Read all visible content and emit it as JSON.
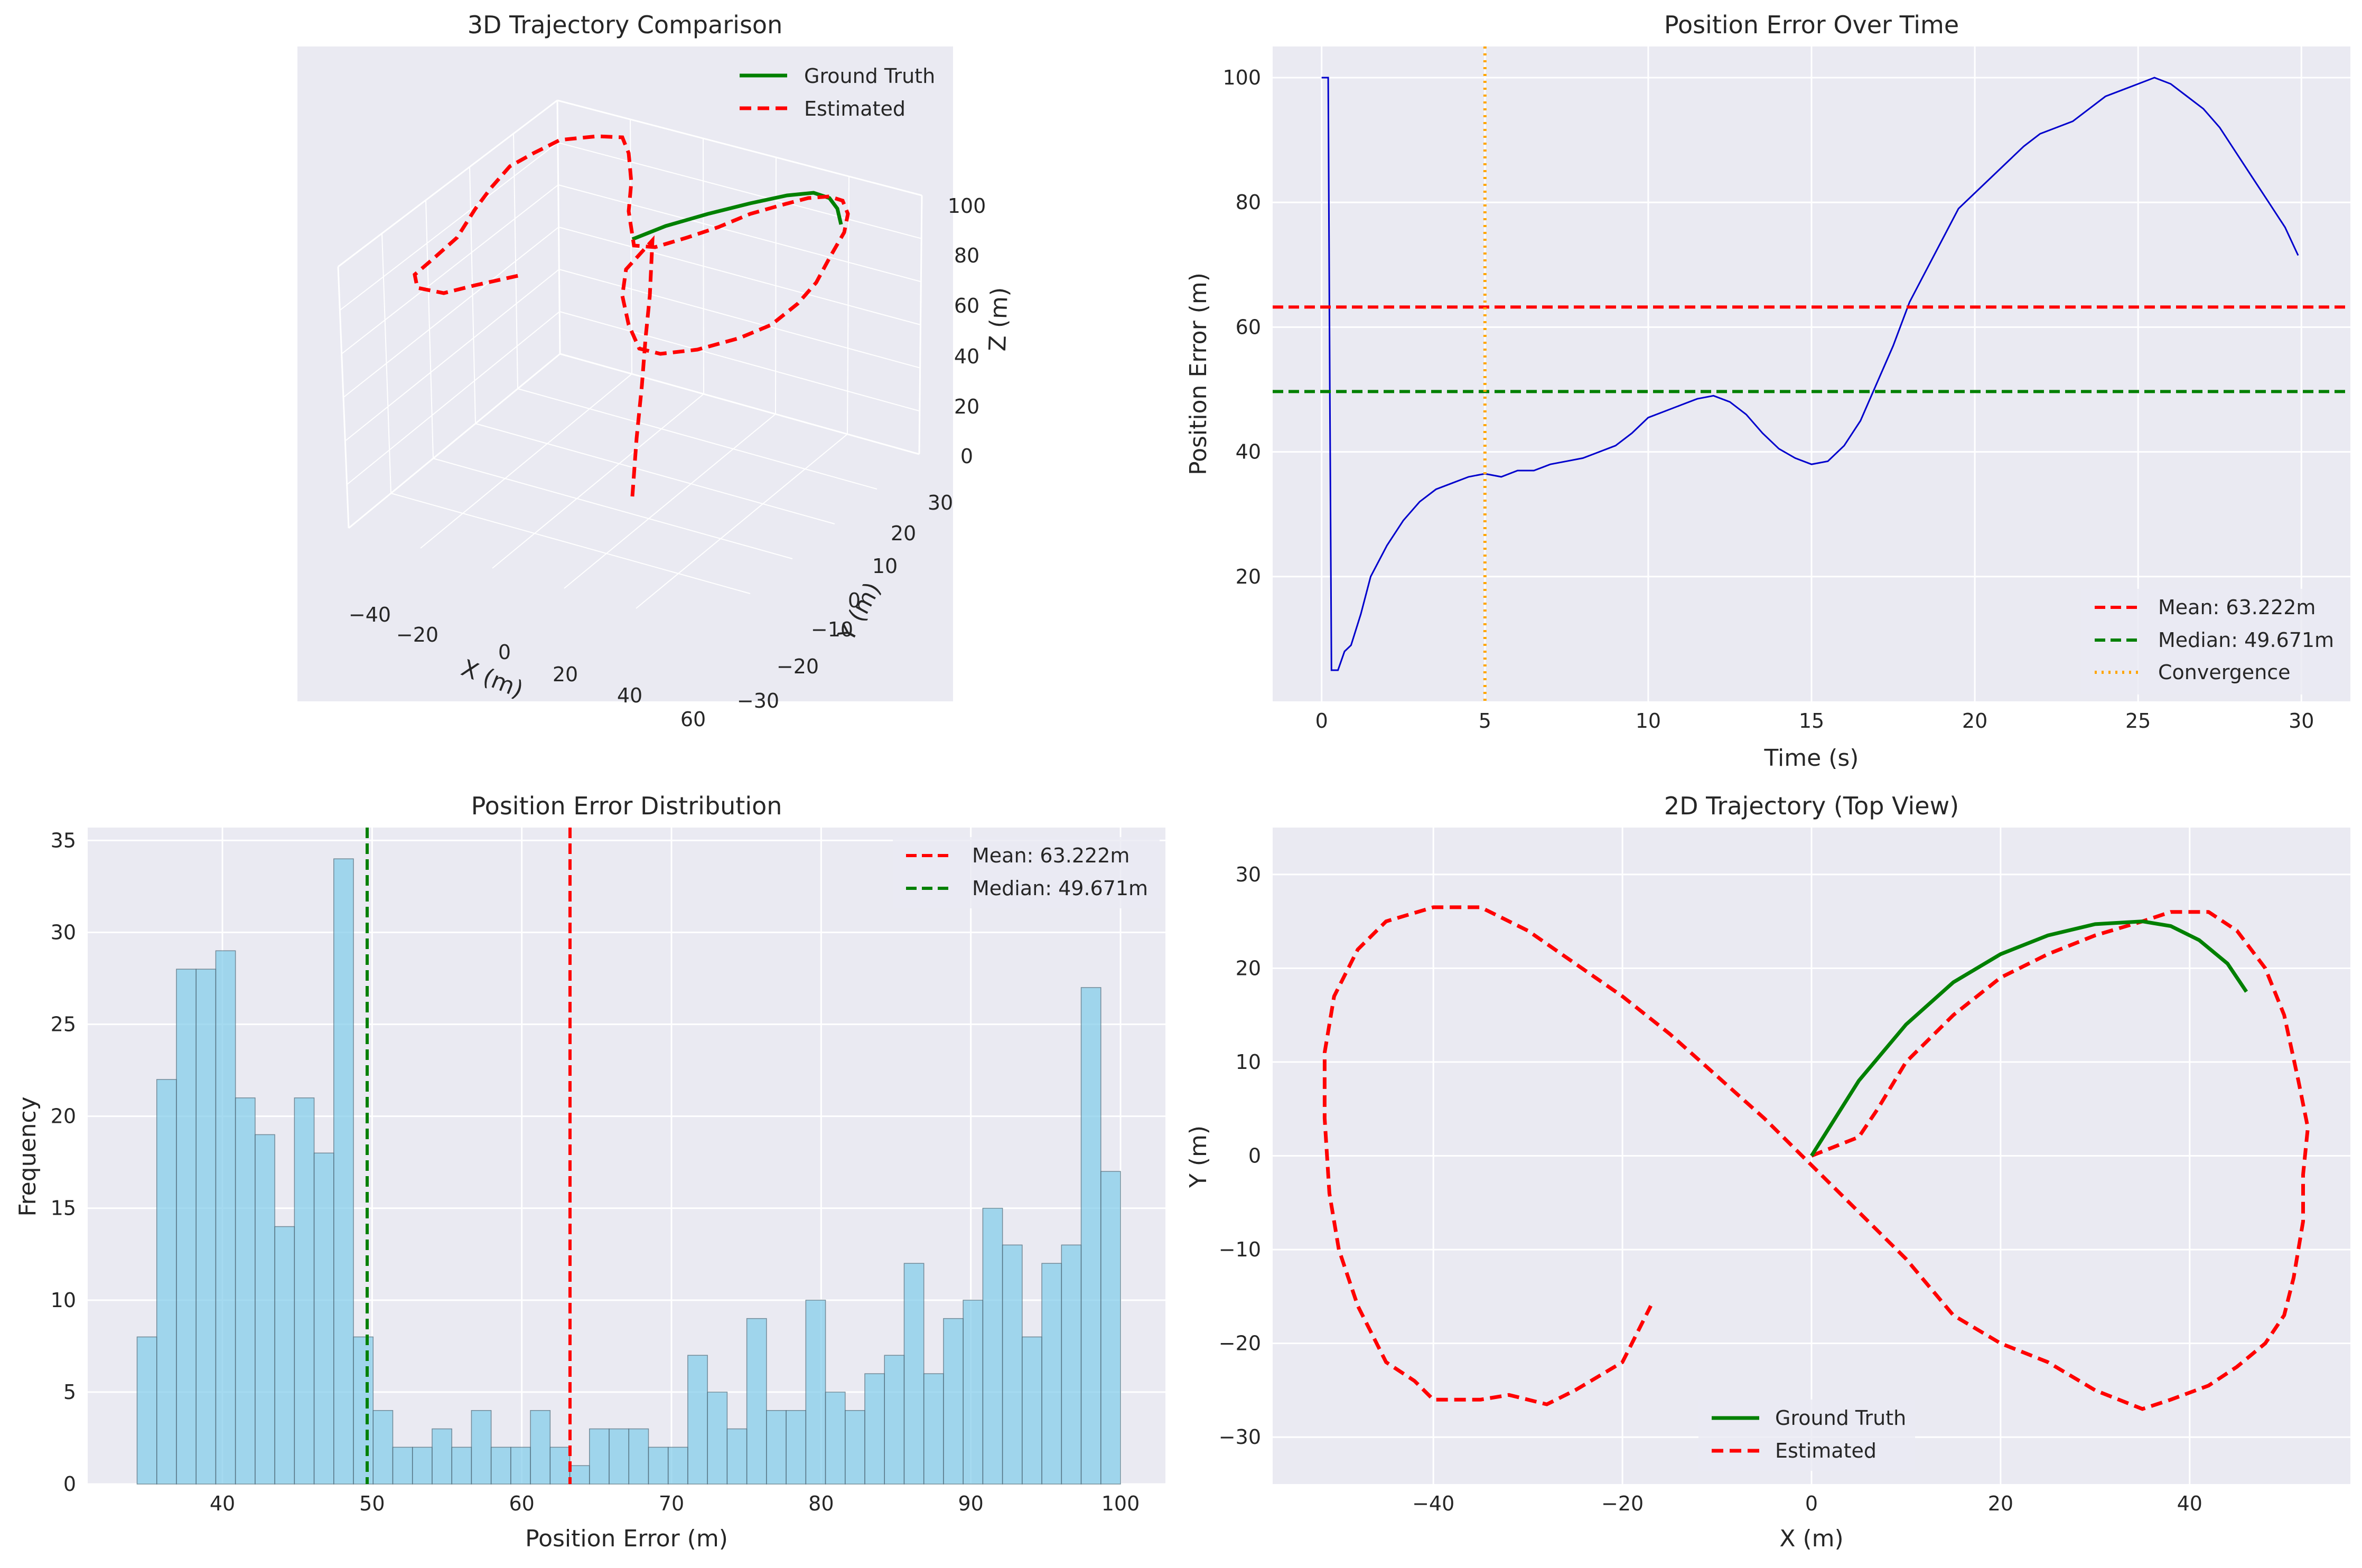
{
  "colors": {
    "ground_truth": "#008000",
    "estimated": "#ff0000",
    "error_line": "#0000cc",
    "mean": "#ff0000",
    "median": "#008000",
    "convergence": "#ffa500",
    "hist_fill": "#87ceeb",
    "hist_edge": "#4a6a7a"
  },
  "chart_data": [
    {
      "type": "line",
      "title": "3D Trajectory Comparison",
      "xlabel": "X (m)",
      "ylabel": "Y (m)",
      "zlabel": "Z (m)",
      "x_ticks": [
        "−40",
        "−20",
        "0",
        "20",
        "40",
        "60"
      ],
      "y_ticks": [
        "−30",
        "−20",
        "−10",
        "0",
        "10",
        "20",
        "30"
      ],
      "z_ticks": [
        "0",
        "20",
        "40",
        "60",
        "80",
        "100"
      ],
      "xlim": [
        -55,
        65
      ],
      "ylim": [
        -30,
        30
      ],
      "zlim": [
        0,
        100
      ],
      "legend_position": "top-right",
      "series": [
        {
          "name": "Ground Truth",
          "style": "solid"
        },
        {
          "name": "Estimated",
          "style": "dashed"
        }
      ]
    },
    {
      "type": "line",
      "title": "Position Error Over Time",
      "xlabel": "Time (s)",
      "ylabel": "Position Error (m)",
      "xlim": [
        -1.5,
        31.5
      ],
      "ylim": [
        0,
        105
      ],
      "x_ticks": [
        0,
        5,
        10,
        15,
        20,
        25,
        30
      ],
      "y_ticks": [
        20,
        40,
        60,
        80,
        100
      ],
      "legend_position": "bottom-right",
      "series": [
        {
          "name": "",
          "x": [
            0,
            0.2,
            0.25,
            0.3,
            0.5,
            0.7,
            0.9,
            1.2,
            1.5,
            2,
            2.5,
            3,
            3.5,
            4,
            4.5,
            5,
            5.5,
            6,
            6.5,
            7,
            7.5,
            8,
            8.5,
            9,
            9.5,
            10,
            10.5,
            11,
            11.5,
            12,
            12.5,
            13,
            13.5,
            14,
            14.5,
            15,
            15.5,
            16,
            16.5,
            17,
            17.5,
            18,
            18.5,
            19,
            19.5,
            20,
            20.5,
            21,
            21.5,
            22,
            22.5,
            23,
            23.5,
            24,
            24.5,
            25,
            25.5,
            26,
            26.5,
            27,
            27.5,
            28,
            28.5,
            29,
            29.5,
            29.9
          ],
          "y": [
            100,
            100,
            50,
            5,
            5,
            8,
            9,
            14,
            20,
            25,
            29,
            32,
            34,
            35,
            36,
            36.5,
            36,
            37,
            37,
            38,
            38.5,
            39,
            40,
            41,
            43,
            45.5,
            46.5,
            47.5,
            48.5,
            49,
            48,
            46,
            43,
            40.5,
            39,
            38,
            38.5,
            41,
            45,
            51,
            57,
            64,
            69,
            74,
            79,
            81.5,
            84,
            86.5,
            89,
            91,
            92,
            93,
            95,
            97,
            98,
            99,
            100,
            99,
            97,
            95,
            92,
            88,
            84,
            80,
            76,
            71.5
          ]
        },
        {
          "name": "Mean: 63.222m",
          "value": 63.222,
          "style": "dashed"
        },
        {
          "name": "Median: 49.671m",
          "value": 49.671,
          "style": "dashed"
        },
        {
          "name": "Convergence",
          "x_value": 5,
          "style": "dotted"
        }
      ]
    },
    {
      "type": "bar",
      "title": "Position Error Distribution",
      "xlabel": "Position Error (m)",
      "ylabel": "Frequency",
      "xlim": [
        31,
        103
      ],
      "ylim": [
        0,
        35.7
      ],
      "x_ticks": [
        40,
        50,
        60,
        70,
        80,
        90,
        100
      ],
      "y_ticks": [
        0,
        5,
        10,
        15,
        20,
        25,
        30,
        35
      ],
      "bin_start": 34.3,
      "bin_end": 100,
      "values": [
        8,
        22,
        28,
        28,
        29,
        21,
        19,
        14,
        21,
        18,
        34,
        8,
        4,
        2,
        2,
        3,
        2,
        4,
        2,
        2,
        4,
        2,
        1,
        3,
        3,
        3,
        2,
        2,
        7,
        5,
        3,
        9,
        4,
        4,
        10,
        5,
        4,
        6,
        7,
        12,
        6,
        9,
        10,
        15,
        13,
        8,
        12,
        13,
        27,
        17
      ],
      "legend_position": "top-right",
      "series": [
        {
          "name": "Mean: 63.222m",
          "value": 63.222,
          "style": "dashed"
        },
        {
          "name": "Median: 49.671m",
          "value": 49.671,
          "style": "dashed"
        }
      ]
    },
    {
      "type": "line",
      "title": "2D Trajectory (Top View)",
      "xlabel": "X (m)",
      "ylabel": "Y (m)",
      "xlim": [
        -57,
        57
      ],
      "ylim": [
        -35,
        35
      ],
      "x_ticks": [
        -40,
        -20,
        0,
        20,
        40
      ],
      "y_ticks": [
        -30,
        -20,
        -10,
        0,
        10,
        20,
        30
      ],
      "legend_position": "bottom-center",
      "series": [
        {
          "name": "Ground Truth",
          "style": "solid",
          "x": [
            0,
            5,
            10,
            15,
            20,
            25,
            30,
            35,
            38,
            41,
            44,
            46
          ],
          "y": [
            0,
            8,
            14,
            18.5,
            21.5,
            23.5,
            24.7,
            25,
            24.5,
            23,
            20.5,
            17.5
          ]
        },
        {
          "name": "Estimated",
          "style": "dashed",
          "x": [
            0,
            5,
            7,
            10,
            15,
            20,
            25,
            30,
            35,
            38,
            42,
            45,
            48,
            50,
            51.5,
            52.5,
            52,
            52,
            51,
            50,
            48,
            45,
            42,
            38,
            35,
            30,
            25,
            20,
            15,
            10,
            5,
            0,
            -5,
            -10,
            -15,
            -20,
            -25,
            -30,
            -35,
            -40,
            -45,
            -48,
            -50.5,
            -51.5,
            -51.5,
            -51,
            -50,
            -48,
            -45,
            -42,
            -40,
            -35,
            -32,
            -28,
            -25,
            -20,
            -17
          ],
          "y": [
            0,
            2,
            5,
            10,
            15,
            19,
            21.5,
            23.5,
            25,
            26,
            26,
            24,
            20,
            15,
            8,
            3,
            -2,
            -7,
            -13,
            -17,
            -20,
            -22.5,
            -24.5,
            -26,
            -27,
            -25,
            -22,
            -20,
            -17,
            -11,
            -6,
            -1,
            4,
            8.5,
            13,
            17,
            20.5,
            24,
            26.5,
            26.5,
            25,
            22,
            17,
            11,
            4,
            -4,
            -10,
            -16,
            -22,
            -24,
            -26,
            -26,
            -25.5,
            -26.5,
            -25,
            -22,
            -16
          ]
        }
      ]
    }
  ]
}
